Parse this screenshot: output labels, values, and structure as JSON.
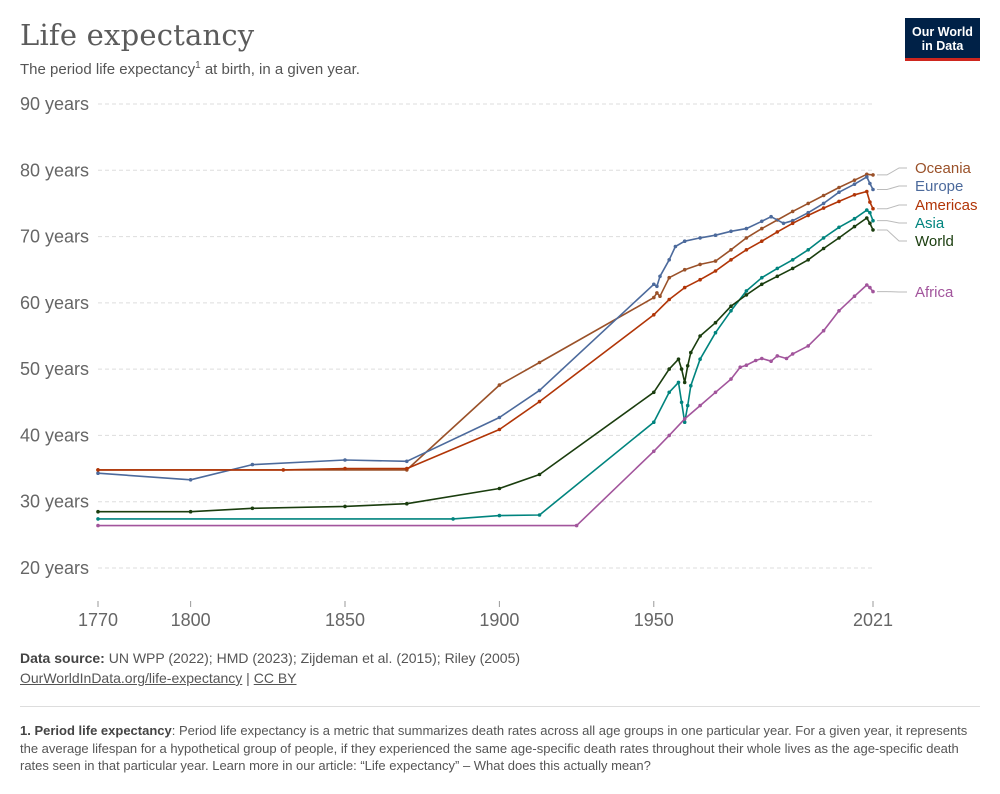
{
  "header": {
    "title": "Life expectancy",
    "subtitle": "The period life expectancy",
    "subtitle_sup": "1",
    "subtitle_tail": " at birth, in a given year.",
    "logo_line1": "Our World",
    "logo_line2": "in Data"
  },
  "footer": {
    "source_label": "Data source:",
    "source_text": " UN WPP (2022); HMD (2023); Zijdeman et al. (2015); Riley (2005)",
    "link1": "OurWorldInData.org/life-expectancy",
    "separator": " | ",
    "link2": "CC BY",
    "footnote_label": "1. Period life expectancy",
    "footnote_text": ": Period life expectancy is a metric that summarizes death rates across all age groups in one particular year. For a given year, it represents the average lifespan for a hypothetical group of people, if they experienced the same age-specific death rates throughout their whole lives as the age-specific death rates seen in that particular year. Learn more in our article: “Life expectancy” – What does this actually mean?"
  },
  "chart_data": {
    "type": "line",
    "xlim": [
      1770,
      2021
    ],
    "ylim": [
      20,
      90
    ],
    "x_ticks": [
      {
        "value": 1770,
        "label": "1770"
      },
      {
        "value": 1800,
        "label": "1800"
      },
      {
        "value": 1850,
        "label": "1850"
      },
      {
        "value": 1900,
        "label": "1900"
      },
      {
        "value": 1950,
        "label": "1950"
      },
      {
        "value": 2021,
        "label": "2021"
      }
    ],
    "y_ticks": [
      {
        "value": 20,
        "label": "20 years"
      },
      {
        "value": 30,
        "label": "30 years"
      },
      {
        "value": 40,
        "label": "40 years"
      },
      {
        "value": 50,
        "label": "50 years"
      },
      {
        "value": 60,
        "label": "60 years"
      },
      {
        "value": 70,
        "label": "70 years"
      },
      {
        "value": 80,
        "label": "80 years"
      },
      {
        "value": 90,
        "label": "90 years"
      }
    ],
    "grid": true,
    "legend": "right end labels",
    "series": [
      {
        "name": "Oceania",
        "color": "#9a5129",
        "points": [
          [
            1770,
            34.8
          ],
          [
            1870,
            34.8
          ],
          [
            1900,
            47.6
          ],
          [
            1913,
            51.0
          ],
          [
            1950,
            60.8
          ],
          [
            1951,
            61.5
          ],
          [
            1952,
            61.0
          ],
          [
            1955,
            63.8
          ],
          [
            1960,
            65.0
          ],
          [
            1965,
            65.8
          ],
          [
            1970,
            66.3
          ],
          [
            1975,
            68.0
          ],
          [
            1980,
            69.8
          ],
          [
            1985,
            71.2
          ],
          [
            1990,
            72.5
          ],
          [
            1995,
            73.8
          ],
          [
            2000,
            75.0
          ],
          [
            2005,
            76.2
          ],
          [
            2010,
            77.4
          ],
          [
            2015,
            78.5
          ],
          [
            2019,
            79.4
          ],
          [
            2021,
            79.3
          ]
        ]
      },
      {
        "name": "Europe",
        "color": "#4c6a9c",
        "points": [
          [
            1770,
            34.3
          ],
          [
            1800,
            33.3
          ],
          [
            1820,
            35.6
          ],
          [
            1850,
            36.3
          ],
          [
            1870,
            36.1
          ],
          [
            1900,
            42.7
          ],
          [
            1913,
            46.8
          ],
          [
            1950,
            62.8
          ],
          [
            1951,
            62.5
          ],
          [
            1952,
            64.0
          ],
          [
            1955,
            66.5
          ],
          [
            1957,
            68.5
          ],
          [
            1960,
            69.3
          ],
          [
            1965,
            69.8
          ],
          [
            1970,
            70.2
          ],
          [
            1975,
            70.8
          ],
          [
            1980,
            71.2
          ],
          [
            1985,
            72.3
          ],
          [
            1988,
            73.0
          ],
          [
            1992,
            72.0
          ],
          [
            1995,
            72.4
          ],
          [
            2000,
            73.6
          ],
          [
            2005,
            75.0
          ],
          [
            2010,
            76.7
          ],
          [
            2015,
            77.9
          ],
          [
            2019,
            79.0
          ],
          [
            2020,
            78.0
          ],
          [
            2021,
            77.1
          ]
        ]
      },
      {
        "name": "Americas",
        "color": "#b13507",
        "points": [
          [
            1770,
            34.8
          ],
          [
            1830,
            34.8
          ],
          [
            1850,
            35.0
          ],
          [
            1870,
            35.0
          ],
          [
            1900,
            40.9
          ],
          [
            1913,
            45.1
          ],
          [
            1950,
            58.2
          ],
          [
            1955,
            60.5
          ],
          [
            1960,
            62.3
          ],
          [
            1965,
            63.5
          ],
          [
            1970,
            64.8
          ],
          [
            1975,
            66.5
          ],
          [
            1980,
            68.0
          ],
          [
            1985,
            69.3
          ],
          [
            1990,
            70.7
          ],
          [
            1995,
            72.0
          ],
          [
            2000,
            73.2
          ],
          [
            2005,
            74.3
          ],
          [
            2010,
            75.3
          ],
          [
            2015,
            76.3
          ],
          [
            2019,
            76.8
          ],
          [
            2020,
            75.2
          ],
          [
            2021,
            74.2
          ]
        ]
      },
      {
        "name": "Asia",
        "color": "#00847e",
        "points": [
          [
            1770,
            27.4
          ],
          [
            1885,
            27.4
          ],
          [
            1900,
            27.9
          ],
          [
            1913,
            28.0
          ],
          [
            1950,
            42.0
          ],
          [
            1955,
            46.5
          ],
          [
            1958,
            48.0
          ],
          [
            1959,
            45.0
          ],
          [
            1960,
            42.0
          ],
          [
            1961,
            44.5
          ],
          [
            1962,
            47.5
          ],
          [
            1965,
            51.5
          ],
          [
            1970,
            55.5
          ],
          [
            1975,
            58.8
          ],
          [
            1980,
            61.8
          ],
          [
            1985,
            63.8
          ],
          [
            1990,
            65.2
          ],
          [
            1995,
            66.5
          ],
          [
            2000,
            68.0
          ],
          [
            2005,
            69.8
          ],
          [
            2010,
            71.4
          ],
          [
            2015,
            72.7
          ],
          [
            2019,
            74.0
          ],
          [
            2020,
            73.6
          ],
          [
            2021,
            72.4
          ]
        ]
      },
      {
        "name": "World",
        "color": "#1a3d0e",
        "points": [
          [
            1770,
            28.5
          ],
          [
            1800,
            28.5
          ],
          [
            1820,
            29.0
          ],
          [
            1850,
            29.3
          ],
          [
            1870,
            29.7
          ],
          [
            1900,
            32.0
          ],
          [
            1913,
            34.1
          ],
          [
            1950,
            46.5
          ],
          [
            1955,
            50.0
          ],
          [
            1958,
            51.5
          ],
          [
            1959,
            50.0
          ],
          [
            1960,
            48.0
          ],
          [
            1961,
            50.5
          ],
          [
            1962,
            52.5
          ],
          [
            1965,
            55.0
          ],
          [
            1970,
            57.0
          ],
          [
            1975,
            59.5
          ],
          [
            1980,
            61.2
          ],
          [
            1985,
            62.8
          ],
          [
            1990,
            64.0
          ],
          [
            1995,
            65.2
          ],
          [
            2000,
            66.5
          ],
          [
            2005,
            68.2
          ],
          [
            2010,
            69.8
          ],
          [
            2015,
            71.5
          ],
          [
            2019,
            72.8
          ],
          [
            2020,
            72.0
          ],
          [
            2021,
            71.0
          ]
        ]
      },
      {
        "name": "Africa",
        "color": "#a2559c",
        "points": [
          [
            1770,
            26.4
          ],
          [
            1925,
            26.4
          ],
          [
            1950,
            37.6
          ],
          [
            1955,
            40.0
          ],
          [
            1960,
            42.5
          ],
          [
            1965,
            44.5
          ],
          [
            1970,
            46.5
          ],
          [
            1975,
            48.5
          ],
          [
            1978,
            50.3
          ],
          [
            1980,
            50.6
          ],
          [
            1983,
            51.3
          ],
          [
            1985,
            51.6
          ],
          [
            1988,
            51.2
          ],
          [
            1990,
            52.0
          ],
          [
            1993,
            51.6
          ],
          [
            1995,
            52.3
          ],
          [
            2000,
            53.5
          ],
          [
            2005,
            55.8
          ],
          [
            2010,
            58.8
          ],
          [
            2015,
            61.0
          ],
          [
            2019,
            62.7
          ],
          [
            2020,
            62.3
          ],
          [
            2021,
            61.7
          ]
        ]
      }
    ]
  }
}
